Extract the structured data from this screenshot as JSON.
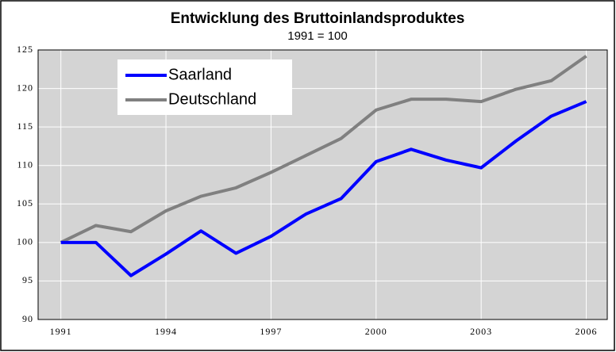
{
  "chart_data": {
    "type": "line",
    "title": "Entwicklung des Bruttoinlandsproduktes",
    "subtitle": "1991 = 100",
    "x": [
      1991,
      1992,
      1993,
      1994,
      1995,
      1996,
      1997,
      1998,
      1999,
      2000,
      2001,
      2002,
      2003,
      2004,
      2005,
      2006
    ],
    "series": [
      {
        "name": "Saarland",
        "color": "#0000ff",
        "values": [
          100,
          100,
          95.7,
          98.5,
          101.5,
          98.6,
          100.8,
          103.7,
          105.7,
          110.5,
          112.1,
          110.7,
          109.7,
          113.2,
          116.4,
          118.3
        ]
      },
      {
        "name": "Deutschland",
        "color": "#808080",
        "values": [
          100,
          102.2,
          101.4,
          104.1,
          106.0,
          107.1,
          109.1,
          111.3,
          113.5,
          117.2,
          118.6,
          118.6,
          118.3,
          119.9,
          121.0,
          124.2
        ]
      }
    ],
    "xlim": [
      1990.35,
      2006.6
    ],
    "xticks": [
      1991,
      1994,
      1997,
      2000,
      2003,
      2006
    ],
    "ylim": [
      90,
      125
    ],
    "yticks": [
      90,
      95,
      100,
      105,
      110,
      115,
      120,
      125
    ],
    "grid": true,
    "legend": "upper left"
  }
}
